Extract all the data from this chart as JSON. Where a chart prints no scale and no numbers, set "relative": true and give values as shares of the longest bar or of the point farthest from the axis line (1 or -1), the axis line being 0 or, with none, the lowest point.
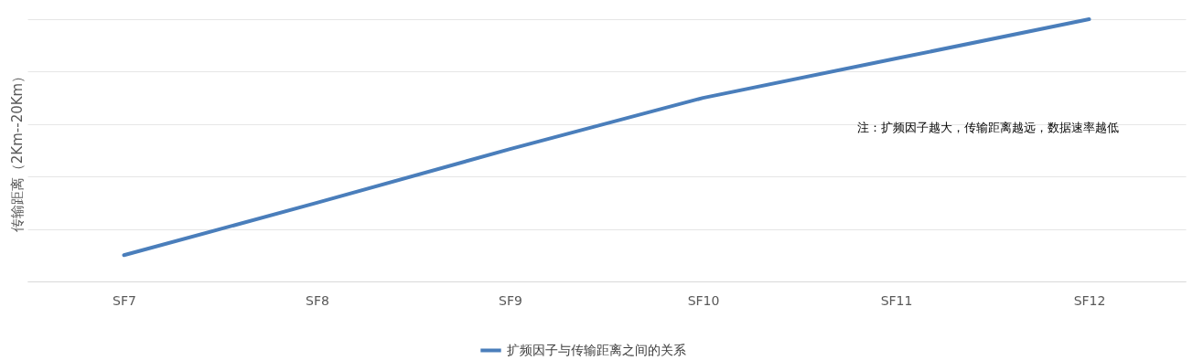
{
  "chart_data": {
    "type": "line",
    "relative": true,
    "ylabel": "传输距离（2Km--20Km）",
    "categories": [
      "SF7",
      "SF8",
      "SF9",
      "SF10",
      "SF11",
      "SF12"
    ],
    "series": [
      {
        "name": "扩频因子与传输距离之间的关系",
        "color": "#4a7ebb",
        "values": [
          0.1,
          0.3,
          0.505,
          0.7,
          0.85,
          1
        ]
      }
    ],
    "annotations": [
      "注：扩频因子越大，传输距离越远，数据速率越低"
    ],
    "grid": "y",
    "legend": "bottom",
    "marker": "none",
    "line_style": "solid"
  }
}
